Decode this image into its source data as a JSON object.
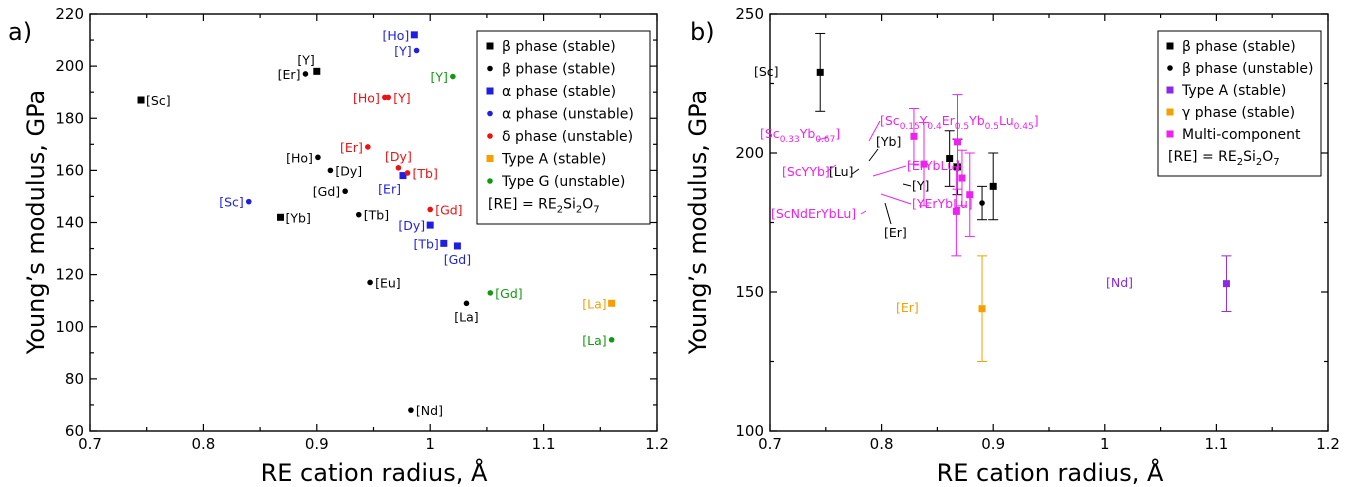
{
  "colors": {
    "black": "#000000",
    "blue": "#1f1fe0",
    "red": "#ee1111",
    "orange": "#f5a000",
    "green": "#119911",
    "purple": "#8a2be2",
    "magenta": "#ee22ee"
  },
  "chart_data": [
    {
      "type": "scatter",
      "panel_label": "a)",
      "xlabel": "RE cation radius, Å",
      "ylabel": "Young’s modulus, GPa",
      "xlim": [
        0.7,
        1.2
      ],
      "ylim": [
        60,
        220
      ],
      "xticks": [
        "0.7",
        "0.8",
        "0.9",
        "1",
        "1.1",
        "1.2"
      ],
      "yticks": [
        "60",
        "80",
        "100",
        "120",
        "140",
        "160",
        "180",
        "200",
        "220"
      ],
      "legend_position": "top-right",
      "legend": [
        {
          "text": "β phase (stable)",
          "marker": "square",
          "color": "black"
        },
        {
          "text": "β phase (stable)",
          "marker": "circle",
          "color": "black"
        },
        {
          "text": "α phase (stable)",
          "marker": "square",
          "color": "blue"
        },
        {
          "text": "α phase (unstable)",
          "marker": "circle",
          "color": "blue"
        },
        {
          "text": "δ phase (unstable)",
          "marker": "circle",
          "color": "red"
        },
        {
          "text": "Type A (stable)",
          "marker": "square",
          "color": "orange"
        },
        {
          "text": "Type G (unstable)",
          "marker": "circle",
          "color": "green"
        }
      ],
      "legend_note": {
        "prefix": "[RE] = RE",
        "sub1": "2",
        "mid": "Si",
        "sub2": "2",
        "mid2": "O",
        "sub3": "7"
      },
      "points": [
        {
          "label": "[Sc]",
          "x": 0.745,
          "y": 187,
          "marker": "square",
          "color": "black",
          "pos": "right"
        },
        {
          "label": "[Y]",
          "x": 0.9,
          "y": 198,
          "marker": "square",
          "color": "black",
          "pos": "topleft"
        },
        {
          "label": "[Er]",
          "x": 0.89,
          "y": 197,
          "marker": "circle",
          "color": "black",
          "pos": "left"
        },
        {
          "label": "[Ho]",
          "x": 0.901,
          "y": 165,
          "marker": "circle",
          "color": "black",
          "pos": "left"
        },
        {
          "label": "[Dy]",
          "x": 0.912,
          "y": 160,
          "marker": "circle",
          "color": "black",
          "pos": "right"
        },
        {
          "label": "[Gd]",
          "x": 0.925,
          "y": 152,
          "marker": "circle",
          "color": "black",
          "pos": "left"
        },
        {
          "label": "[Yb]",
          "x": 0.868,
          "y": 142,
          "marker": "square",
          "color": "black",
          "pos": "right"
        },
        {
          "label": "[Tb]",
          "x": 0.937,
          "y": 143,
          "marker": "circle",
          "color": "black",
          "pos": "right"
        },
        {
          "label": "[Eu]",
          "x": 0.947,
          "y": 117,
          "marker": "circle",
          "color": "black",
          "pos": "right"
        },
        {
          "label": "[La]",
          "x": 1.032,
          "y": 109,
          "marker": "circle",
          "color": "black",
          "pos": "below"
        },
        {
          "label": "[Nd]",
          "x": 0.983,
          "y": 68,
          "marker": "circle",
          "color": "black",
          "pos": "right"
        },
        {
          "label": "[Ho]",
          "x": 0.986,
          "y": 212,
          "marker": "square",
          "color": "blue",
          "pos": "left"
        },
        {
          "label": "[Y]",
          "x": 0.988,
          "y": 206,
          "marker": "circle",
          "color": "blue",
          "pos": "left"
        },
        {
          "label": "[Sc]",
          "x": 0.84,
          "y": 148,
          "marker": "circle",
          "color": "blue",
          "pos": "left"
        },
        {
          "label": "[Er]",
          "x": 0.976,
          "y": 158,
          "marker": "square",
          "color": "blue",
          "pos": "belowleft"
        },
        {
          "label": "[Dy]",
          "x": 1.0,
          "y": 139,
          "marker": "square",
          "color": "blue",
          "pos": "left"
        },
        {
          "label": "[Tb]",
          "x": 1.012,
          "y": 132,
          "marker": "square",
          "color": "blue",
          "pos": "left"
        },
        {
          "label": "[Gd]",
          "x": 1.024,
          "y": 131,
          "marker": "square",
          "color": "blue",
          "pos": "below"
        },
        {
          "label": "[Ho]",
          "x": 0.96,
          "y": 188,
          "marker": "circle",
          "color": "red",
          "pos": "left"
        },
        {
          "label": "[Y]",
          "x": 0.963,
          "y": 188,
          "marker": "circle",
          "color": "red",
          "pos": "right"
        },
        {
          "label": "[Er]",
          "x": 0.945,
          "y": 169,
          "marker": "circle",
          "color": "red",
          "pos": "left"
        },
        {
          "label": "[Dy]",
          "x": 0.972,
          "y": 161,
          "marker": "circle",
          "color": "red",
          "pos": "abovecenter"
        },
        {
          "label": "[Tb]",
          "x": 0.98,
          "y": 159,
          "marker": "circle",
          "color": "red",
          "pos": "right"
        },
        {
          "label": "[Gd]",
          "x": 1.0,
          "y": 145,
          "marker": "circle",
          "color": "red",
          "pos": "right"
        },
        {
          "label": "[La]",
          "x": 1.16,
          "y": 109,
          "marker": "square",
          "color": "orange",
          "pos": "left"
        },
        {
          "label": "[Y]",
          "x": 1.02,
          "y": 196,
          "marker": "circle",
          "color": "green",
          "pos": "left"
        },
        {
          "label": "[Gd]",
          "x": 1.053,
          "y": 113,
          "marker": "circle",
          "color": "green",
          "pos": "right"
        },
        {
          "label": "[La]",
          "x": 1.16,
          "y": 95,
          "marker": "circle",
          "color": "green",
          "pos": "left"
        }
      ]
    },
    {
      "type": "scatter",
      "panel_label": "b)",
      "xlabel": "RE cation radius, Å",
      "ylabel": "Young’s modulus, GPa",
      "xlim": [
        0.7,
        1.2
      ],
      "ylim": [
        100,
        250
      ],
      "xticks": [
        "0.7",
        "0.8",
        "0.9",
        "1",
        "1.1",
        "1.2"
      ],
      "yticks": [
        "100",
        "150",
        "200",
        "250"
      ],
      "legend_position": "top-right",
      "legend": [
        {
          "text": "β phase (stable)",
          "marker": "square",
          "color": "black"
        },
        {
          "text": "β phase (unstable)",
          "marker": "circle",
          "color": "black"
        },
        {
          "text": "Type A (stable)",
          "marker": "square",
          "color": "purple"
        },
        {
          "text": "γ phase (stable)",
          "marker": "square",
          "color": "orange"
        },
        {
          "text": "Multi-component",
          "marker": "square",
          "color": "magenta"
        }
      ],
      "legend_note": {
        "prefix": "[RE] = RE",
        "sub1": "2",
        "mid": "Si",
        "sub2": "2",
        "mid2": "O",
        "sub3": "7"
      },
      "points": [
        {
          "label": "[Sc]",
          "x": 0.745,
          "y": 229,
          "err": 14,
          "marker": "square",
          "color": "black"
        },
        {
          "label": "[Lu]",
          "x": 0.861,
          "y": 198,
          "err": 10,
          "marker": "square",
          "color": "black"
        },
        {
          "label": "[Yb]",
          "x": 0.868,
          "y": 195,
          "err": 10,
          "marker": "square",
          "color": "black"
        },
        {
          "label": "[Y]",
          "x": 0.9,
          "y": 188,
          "err": 12,
          "marker": "square",
          "color": "black"
        },
        {
          "label": "[Er]",
          "x": 0.89,
          "y": 182,
          "err": 6,
          "marker": "circle",
          "color": "black"
        },
        {
          "label": "[Nd]",
          "x": 1.109,
          "y": 153,
          "err": 10,
          "marker": "square",
          "color": "purple"
        },
        {
          "label": "[Er]",
          "x": 0.89,
          "y": 144,
          "err": 19,
          "marker": "square",
          "color": "orange"
        },
        {
          "label": "[Sc0.33Yb0.67]",
          "x": 0.829,
          "y": 206,
          "err": 10,
          "marker": "square",
          "color": "magenta"
        },
        {
          "label": "[ScYYb]",
          "x": 0.838,
          "y": 196,
          "err": 15,
          "marker": "square",
          "color": "magenta"
        },
        {
          "label": "[Sc0.15Y0.4Er0.5Yb0.5Lu0.45]",
          "x": 0.868,
          "y": 204,
          "err": 17,
          "marker": "square",
          "color": "magenta"
        },
        {
          "label": "[ErYbLu]",
          "x": 0.872,
          "y": 191,
          "err": 10,
          "marker": "square",
          "color": "magenta"
        },
        {
          "label": "[YErYbLu]",
          "x": 0.879,
          "y": 185,
          "err": 15,
          "marker": "square",
          "color": "magenta"
        },
        {
          "label": "[ScNdErYbLu]",
          "x": 0.867,
          "y": 179,
          "err": 16,
          "marker": "square",
          "color": "magenta"
        }
      ],
      "text_labels": {
        "sc": "[Sc]",
        "lu": "[Lu]",
        "yb": "[Yb]",
        "y": "[Y]",
        "er_beta": "[Er]",
        "nd": "[Nd]",
        "er_gamma": "[Er]",
        "scyb": {
          "a": "[Sc",
          "s1": "0.33",
          "b": "Yb",
          "s2": "0.67",
          "c": "]"
        },
        "scyyb": "[ScYYb]",
        "long": {
          "a": "[Sc",
          "s1": "0.15",
          "b": "Y",
          "s2": "0.4",
          "c": "Er",
          "s3": "0.5",
          "d": "Yb",
          "s4": "0.5",
          "e": "Lu",
          "s5": "0.45",
          "f": "]"
        },
        "erybLu": "[ErYbLu]",
        "yerybLu": "[YErYbLu]",
        "scnd": "[ScNdErYbLu]"
      }
    }
  ]
}
